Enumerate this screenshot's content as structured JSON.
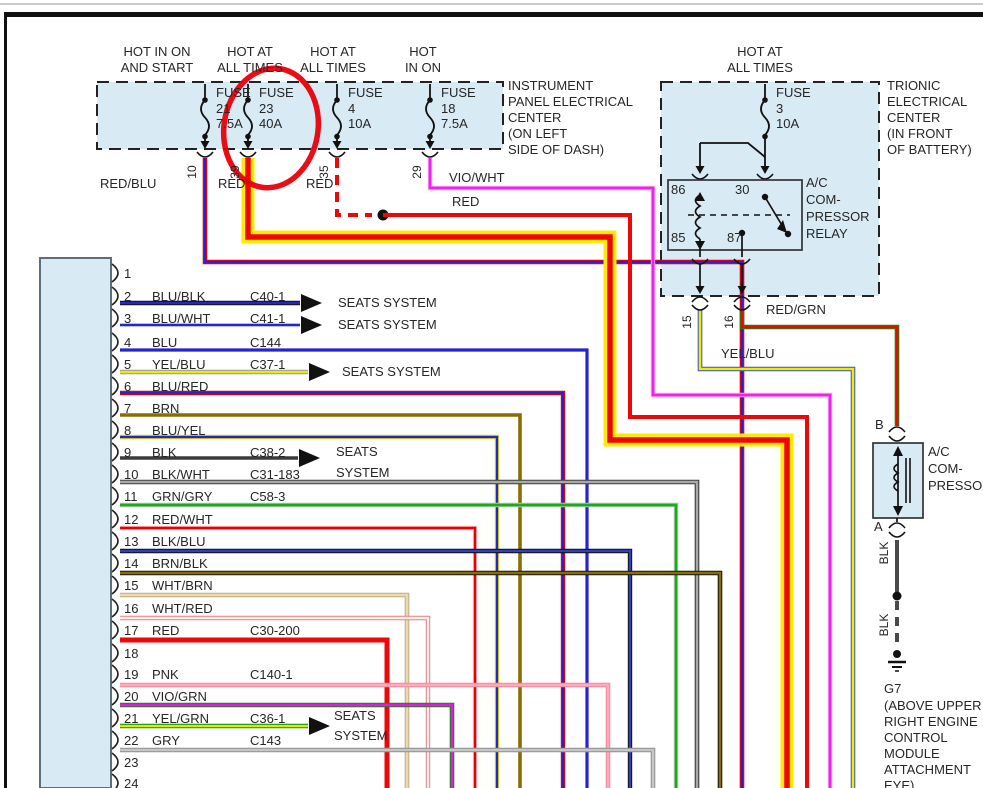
{
  "left_panel": {
    "title_lines": [
      "INSTRUMENT",
      "PANEL ELECTRICAL",
      "CENTER",
      "(ON LEFT",
      "SIDE OF DASH)"
    ],
    "fuses": [
      {
        "hot_lines": [
          "HOT IN ON",
          "AND START"
        ],
        "label": "FUSE",
        "num": "21",
        "amps": "7.5A",
        "pin": "10",
        "wire_label": "RED/BLU",
        "wire_code": "RED/BLU"
      },
      {
        "hot_lines": [
          "HOT AT",
          "ALL TIMES"
        ],
        "label": "FUSE",
        "num": "23",
        "amps": "40A",
        "pin": "39",
        "wire_label": "RED",
        "wire_code": "RED",
        "annotated": true
      },
      {
        "hot_lines": [
          "HOT AT",
          "ALL TIMES"
        ],
        "label": "FUSE",
        "num": "4",
        "amps": "10A",
        "pin": "35",
        "wire_label": "RED",
        "wire_code": "RED"
      },
      {
        "hot_lines": [
          "HOT",
          "IN ON"
        ],
        "label": "FUSE",
        "num": "18",
        "amps": "7.5A",
        "pin": "29",
        "wire_label": "VIO/WHT",
        "wire_code": "VIO/WHT"
      }
    ],
    "junction_wire_label": "RED"
  },
  "right_panel": {
    "hot_lines": [
      "HOT AT",
      "ALL TIMES"
    ],
    "title_lines": [
      "TRIONIC",
      "ELECTRICAL",
      "CENTER",
      "(IN FRONT",
      "OF BATTERY)"
    ],
    "fuse": {
      "label": "FUSE",
      "num": "3",
      "amps": "10A"
    },
    "relay": {
      "pin_tl": "86",
      "pin_tr": "30",
      "pin_bl": "85",
      "pin_bm": "87",
      "label_lines": [
        "A/C",
        "COM-",
        "PRESSOR",
        "RELAY"
      ]
    },
    "out_left": {
      "pin": "15",
      "wire_label": "YEL/BLU"
    },
    "out_right": {
      "pin": "16",
      "wire_label": "RED/GRN"
    }
  },
  "connector": {
    "pins": [
      {
        "num": "1",
        "color": "",
        "code": ""
      },
      {
        "num": "2",
        "color": "BLU/BLK",
        "code": "C40-1"
      },
      {
        "num": "3",
        "color": "BLU/WHT",
        "code": "C41-1"
      },
      {
        "num": "4",
        "color": "BLU",
        "code": "C144"
      },
      {
        "num": "5",
        "color": "YEL/BLU",
        "code": "C37-1"
      },
      {
        "num": "6",
        "color": "BLU/RED",
        "code": ""
      },
      {
        "num": "7",
        "color": "BRN",
        "code": ""
      },
      {
        "num": "8",
        "color": "BLU/YEL",
        "code": ""
      },
      {
        "num": "9",
        "color": "BLK",
        "code": "C38-2"
      },
      {
        "num": "10",
        "color": "BLK/WHT",
        "code": "C31-183"
      },
      {
        "num": "11",
        "color": "GRN/GRY",
        "code": "C58-3"
      },
      {
        "num": "12",
        "color": "RED/WHT",
        "code": ""
      },
      {
        "num": "13",
        "color": "BLK/BLU",
        "code": ""
      },
      {
        "num": "14",
        "color": "BRN/BLK",
        "code": ""
      },
      {
        "num": "15",
        "color": "WHT/BRN",
        "code": ""
      },
      {
        "num": "16",
        "color": "WHT/RED",
        "code": ""
      },
      {
        "num": "17",
        "color": "RED",
        "code": "C30-200"
      },
      {
        "num": "18",
        "color": "",
        "code": ""
      },
      {
        "num": "19",
        "color": "PNK",
        "code": "C140-1"
      },
      {
        "num": "20",
        "color": "VIO/GRN",
        "code": ""
      },
      {
        "num": "21",
        "color": "YEL/GRN",
        "code": "C36-1"
      },
      {
        "num": "22",
        "color": "GRY",
        "code": "C143"
      },
      {
        "num": "23",
        "color": "",
        "code": ""
      },
      {
        "num": "24",
        "color": "",
        "code": ""
      }
    ]
  },
  "seats": [
    {
      "lines": [
        "SEATS SYSTEM"
      ]
    },
    {
      "lines": [
        "SEATS SYSTEM"
      ]
    },
    {
      "lines": [
        "SEATS SYSTEM"
      ]
    },
    {
      "lines": [
        "SEATS",
        "SYSTEM"
      ]
    },
    {
      "lines": [
        "SEATS",
        "SYSTEM"
      ]
    }
  ],
  "compressor": {
    "terminal_b": "B",
    "terminal_a": "A",
    "label_lines": [
      "A/C",
      "COM-",
      "PRESSOR"
    ],
    "wire_label_1": "BLK",
    "wire_label_2": "BLK",
    "ground_id": "G7",
    "ground_note_lines": [
      "(ABOVE UPPER",
      "RIGHT ENGINE",
      "CONTROL",
      "MODULE",
      "ATTACHMENT",
      "EYE)"
    ]
  },
  "annotation": {
    "shape": "hand-drawn circle around FUSE 23",
    "color": "#e8000a"
  }
}
